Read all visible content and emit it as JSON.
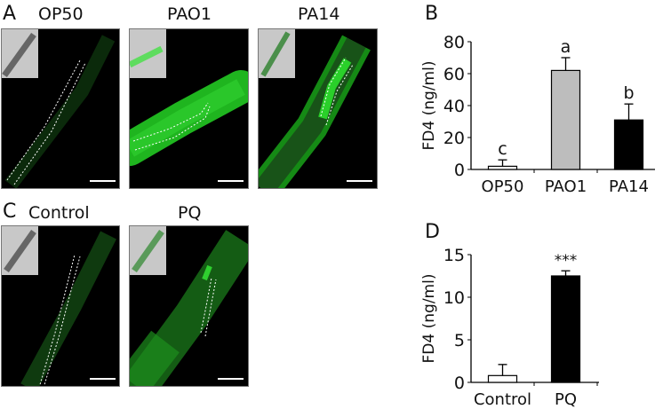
{
  "panels": {
    "A": {
      "letter": "A",
      "titles": [
        "OP50",
        "PAO1",
        "PA14"
      ]
    },
    "B": {
      "letter": "B"
    },
    "C": {
      "letter": "C",
      "titles": [
        "Control",
        "PQ"
      ]
    },
    "D": {
      "letter": "D"
    }
  },
  "colors": {
    "fluorescence": "#22c422",
    "background": "#000000",
    "inset": "#c8c8c8"
  },
  "chart_data": [
    {
      "type": "bar",
      "panel": "B",
      "categories": [
        "OP50",
        "PAO1",
        "PA14"
      ],
      "values": [
        2,
        62,
        31
      ],
      "errors": [
        4,
        8,
        10
      ],
      "bar_colors": [
        "#ffffff",
        "#bdbdbd",
        "#000000"
      ],
      "annotations": [
        "c",
        "a",
        "b"
      ],
      "ylabel": "FD4 (ng/ml)",
      "ylim": [
        0,
        80
      ],
      "yticks": [
        0,
        20,
        40,
        60,
        80
      ],
      "grid": false
    },
    {
      "type": "bar",
      "panel": "D",
      "categories": [
        "Control",
        "PQ"
      ],
      "values": [
        0.8,
        12.5
      ],
      "errors": [
        1.3,
        0.6
      ],
      "bar_colors": [
        "#ffffff",
        "#000000"
      ],
      "annotations": [
        "",
        "***"
      ],
      "ylabel": "FD4 (ng/ml)",
      "ylim": [
        0,
        15
      ],
      "yticks": [
        0,
        5,
        10,
        15
      ],
      "grid": false
    }
  ]
}
